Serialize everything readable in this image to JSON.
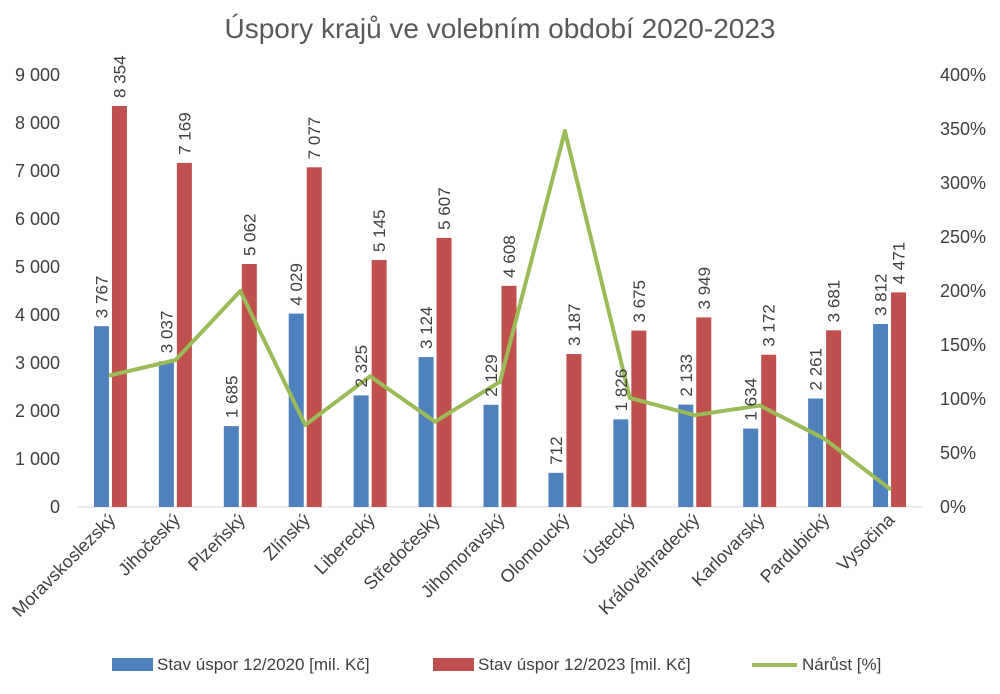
{
  "chart_data": {
    "type": "bar",
    "title": "Úspory krajů ve volebním období 2020-2023",
    "categories": [
      "Moravskoslezský",
      "Jihočeský",
      "Plzeňský",
      "Zlínský",
      "Liberecký",
      "Středočeský",
      "Jihomoravský",
      "Olomoucký",
      "Ústecký",
      "Královéhradecký",
      "Karlovarský",
      "Pardubický",
      "Vysočina"
    ],
    "series": [
      {
        "name": "Stav úspor 12/2020 [mil. Kč]",
        "kind": "bar",
        "axis": "left",
        "color": "#4f81bd",
        "values": [
          3767,
          3037,
          1685,
          4029,
          2325,
          3124,
          2129,
          712,
          1826,
          2133,
          1634,
          2261,
          3812
        ],
        "labels": [
          "3 767",
          "3 037",
          "1 685",
          "4 029",
          "2 325",
          "3 124",
          "2 129",
          "712",
          "1 826",
          "2 133",
          "1 634",
          "2 261",
          "3 812"
        ]
      },
      {
        "name": "Stav úspor 12/2023 [mil. Kč]",
        "kind": "bar",
        "axis": "left",
        "color": "#c0504d",
        "values": [
          8354,
          7169,
          5062,
          7077,
          5145,
          5607,
          4608,
          3187,
          3675,
          3949,
          3172,
          3681,
          4471
        ],
        "labels": [
          "8 354",
          "7 169",
          "5 062",
          "7 077",
          "5 145",
          "5 607",
          "4 608",
          "3 187",
          "3 675",
          "3 949",
          "3 172",
          "3 681",
          "4 471"
        ]
      },
      {
        "name": "Nárůst [%]",
        "kind": "line",
        "axis": "right",
        "color": "#9bbb59",
        "values": [
          122,
          136,
          200,
          76,
          121,
          79,
          116,
          348,
          101,
          85,
          94,
          63,
          17
        ]
      }
    ],
    "yleft": {
      "min": 0,
      "max": 9000,
      "ticks": [
        "0",
        "1 000",
        "2 000",
        "3 000",
        "4 000",
        "5 000",
        "6 000",
        "7 000",
        "8 000",
        "9 000"
      ]
    },
    "yright": {
      "min": 0,
      "max": 400,
      "ticks": [
        "0%",
        "50%",
        "100%",
        "150%",
        "200%",
        "250%",
        "300%",
        "350%",
        "400%"
      ]
    },
    "legend": "bottom",
    "grid": false
  }
}
